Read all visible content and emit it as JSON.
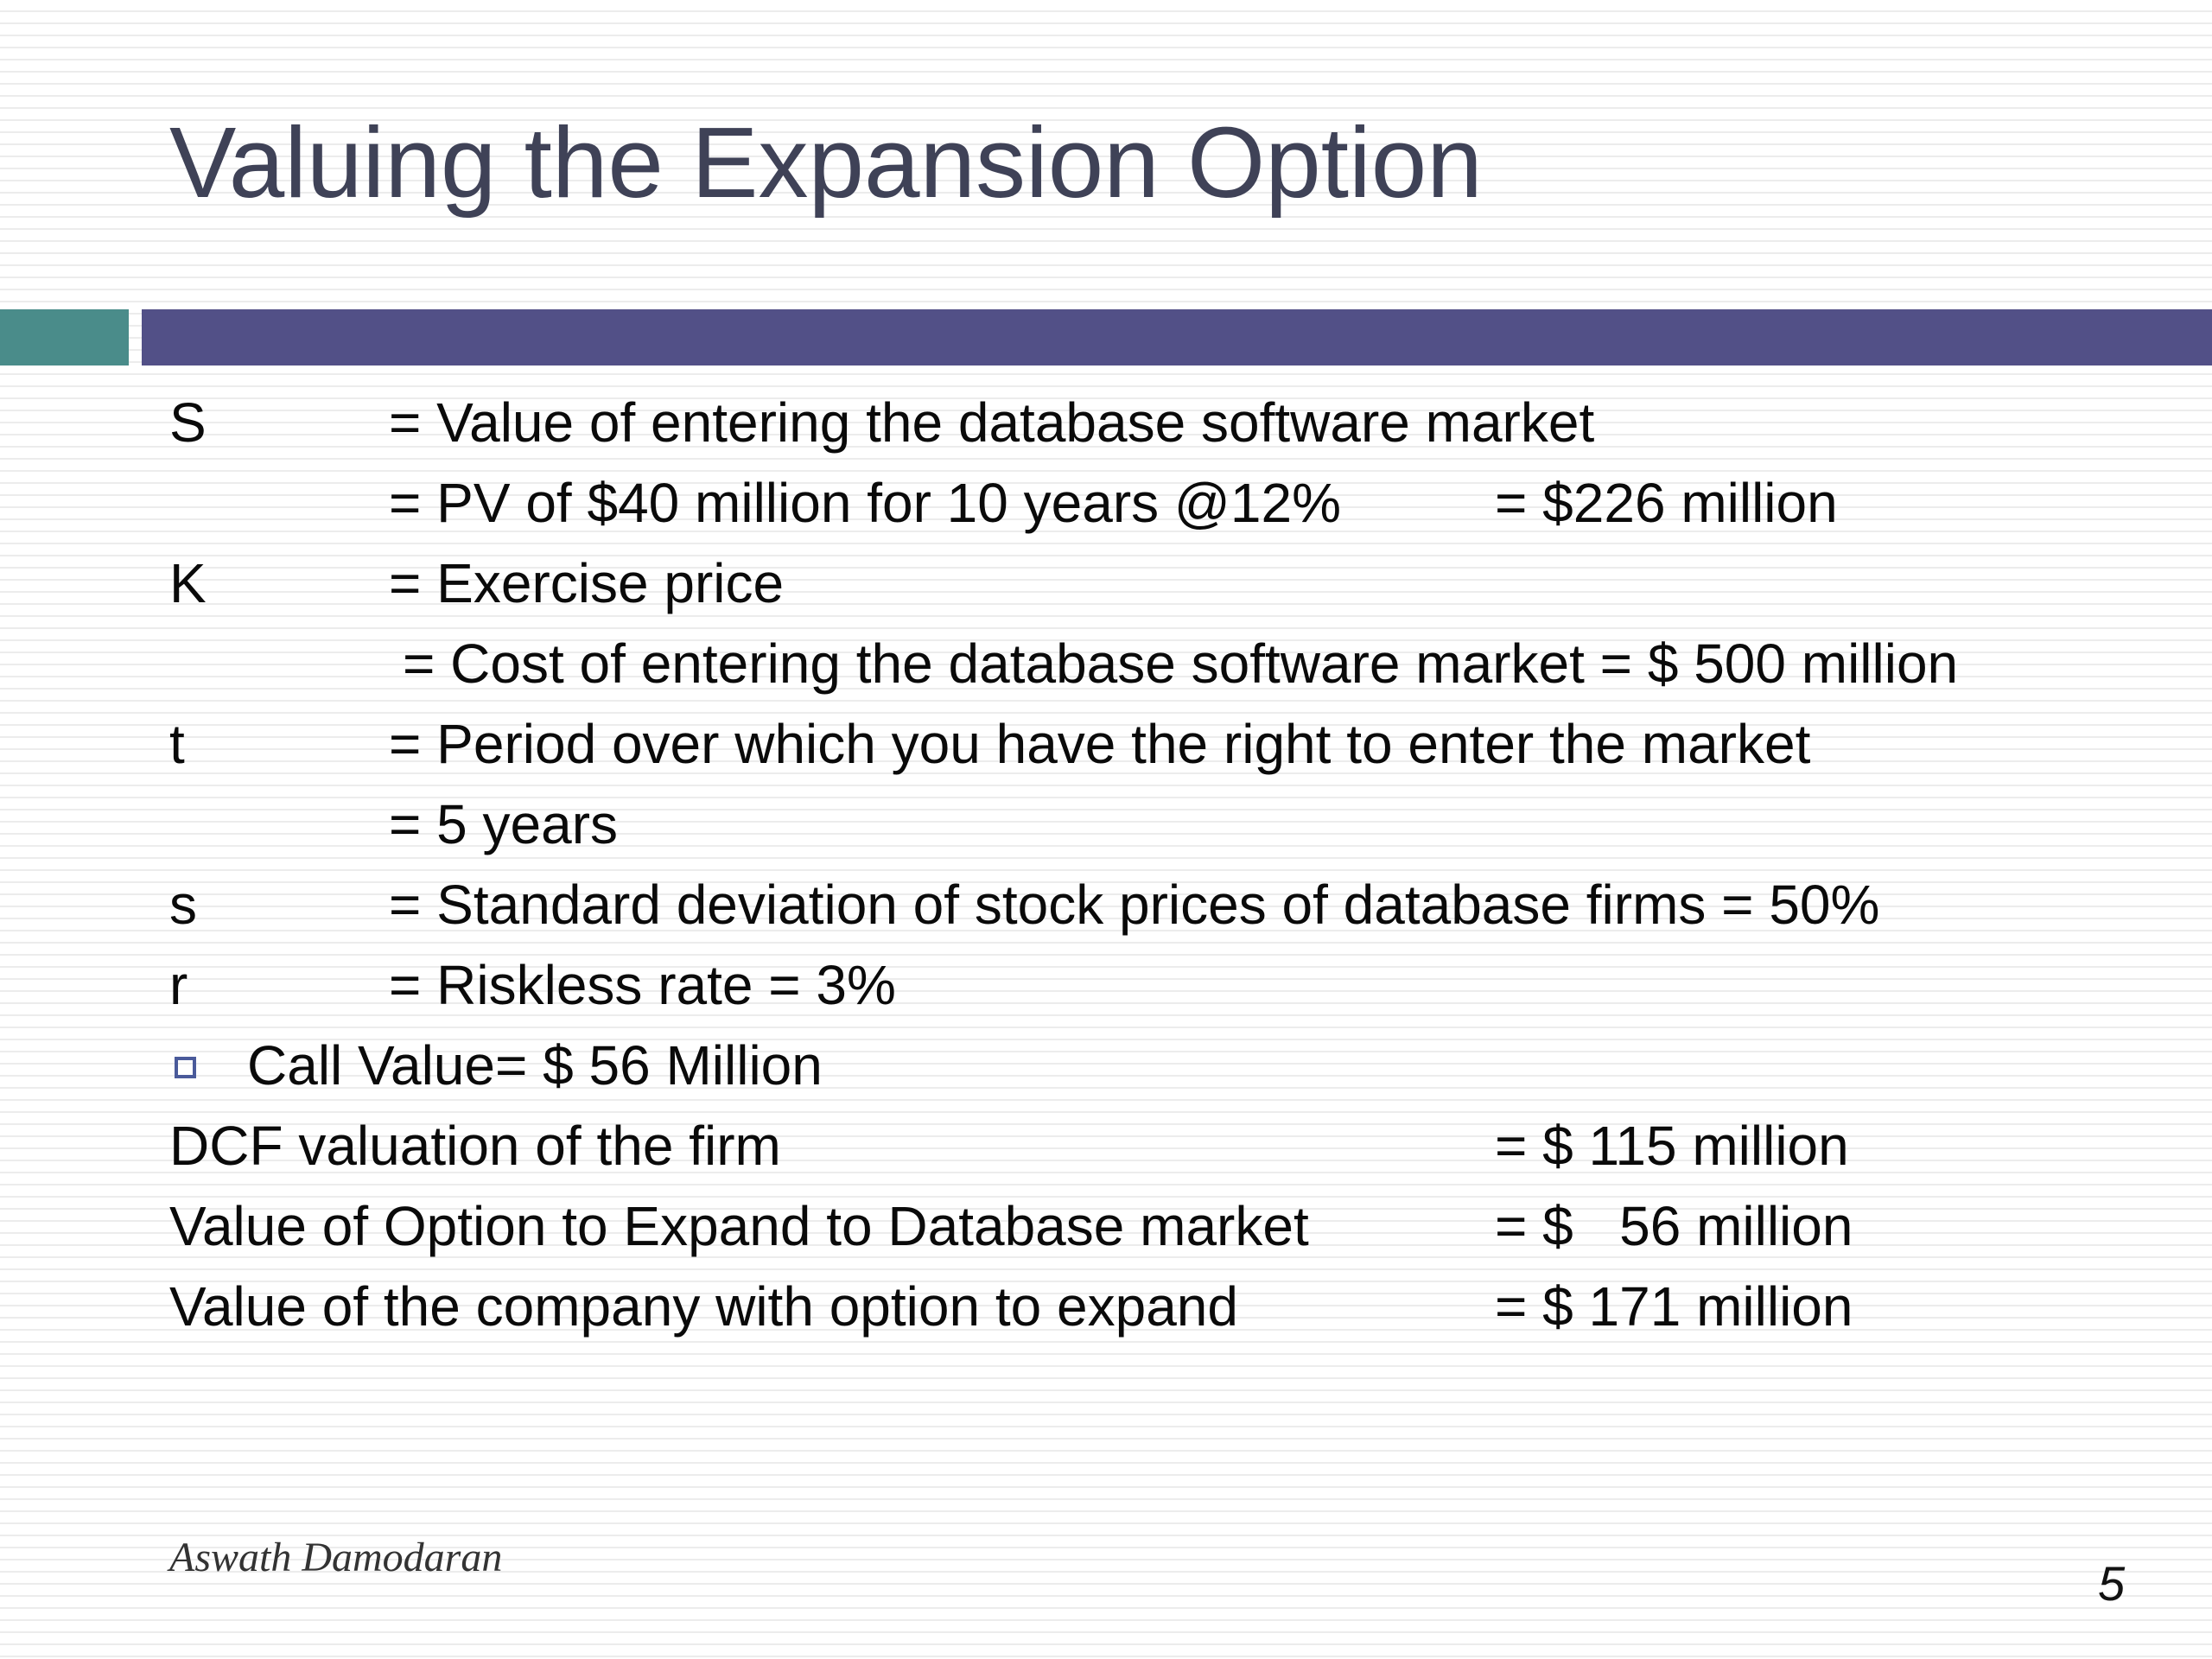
{
  "slide": {
    "title": "Valuing the Expansion Option",
    "author": "Aswath Damodaran",
    "page_number": "5",
    "colors": {
      "title": "#3f4257",
      "bar_left": "#4a8c8a",
      "bar_right": "#525087",
      "bullet": "#4a5a9a"
    }
  },
  "variables": [
    {
      "symbol": "S",
      "definition": "= Value of entering the database software market"
    },
    {
      "symbol": "",
      "definition": "= PV of $40 million for 10 years @12%",
      "value": "= $226 million"
    },
    {
      "symbol": "K",
      "definition": "= Exercise price"
    },
    {
      "symbol": "",
      "definition": "= Cost of entering the database software market = $ 500 million"
    },
    {
      "symbol": "t",
      "definition": "= Period over which you have the right to enter the market"
    },
    {
      "symbol": "",
      "definition": "= 5 years"
    },
    {
      "symbol": "s",
      "definition": "= Standard deviation of stock prices of database firms = 50%"
    },
    {
      "symbol": "r",
      "definition": "= Riskless rate = 3%"
    }
  ],
  "bullet": {
    "text": "Call Value= $ 56 Million"
  },
  "summary": [
    {
      "label": "DCF valuation of the firm",
      "value": "= $ 115 million"
    },
    {
      "label": "Value of Option to Expand to Database market",
      "value": "= $   56 million"
    },
    {
      "label": "Value of the company with option to expand",
      "value": "= $ 171 million"
    }
  ]
}
